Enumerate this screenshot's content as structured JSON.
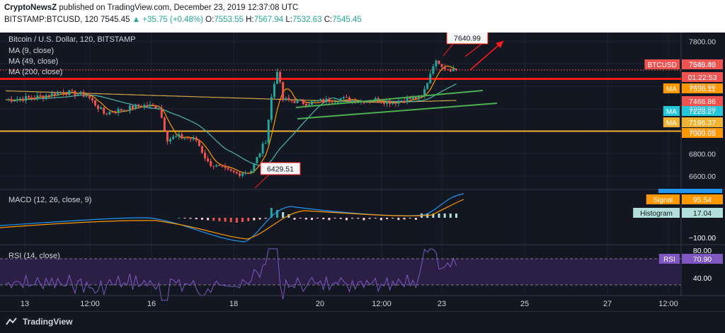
{
  "header": {
    "line1_author": "CryptoNewsZ",
    "line1_rest": " published on TradingView.com, December 23, 2019 12:37:08 UTC",
    "symbol": "BITSTAMP:BTCUSD, 120",
    "price": "7545.45",
    "change": "+35.75 (+0.48%)",
    "o_label": "O:",
    "o": "7553.55",
    "h_label": "H:",
    "h": "7567.94",
    "l_label": "L:",
    "l": "7532.63",
    "c_label": "C:",
    "c": "7545.45"
  },
  "legend": {
    "title": "Bitcoin / U.S. Dollar, 120, BITSTAMP",
    "ma9": "MA (9, close)",
    "ma49": "MA (49, close)",
    "ma200": "MA (200, close)",
    "macd": "MACD (12, 26, close, 9)",
    "rsi": "RSI (14, close)"
  },
  "annotations": {
    "high_callout": "7640.99",
    "low_callout": "6429.51"
  },
  "price_badges": [
    {
      "text": "BTCUSD",
      "value": "7545.45",
      "color": "#ef5350"
    },
    {
      "text": "",
      "value": "01:22:53",
      "color": "#ef5350"
    },
    {
      "text": "MA",
      "value": "7536.11",
      "color": "#ff9800"
    },
    {
      "text": "",
      "value": "7466.86",
      "color": "#ef5350"
    },
    {
      "text": "MA",
      "value": "7228.27",
      "color": "#26c6da"
    },
    {
      "text": "MA",
      "value": "7196.37",
      "color": "#f0b232"
    },
    {
      "text": "",
      "value": "7000.05",
      "color": "#ff9800"
    }
  ],
  "macd_badges": [
    {
      "text": "Signal",
      "value": "95.54",
      "color": "#ff9800"
    },
    {
      "text": "Histogram",
      "value": "17.04",
      "color": "#b2dfdb"
    },
    {
      "text": "",
      "value": "−100.00",
      "color": ""
    }
  ],
  "rsi_badges": [
    {
      "text": "RSI",
      "value": "70.90",
      "color": "#7e57c2"
    },
    {
      "text": "",
      "value": "80.00",
      "color": ""
    },
    {
      "text": "",
      "value": "40.00",
      "color": ""
    }
  ],
  "footer": {
    "brand": "TradingView"
  },
  "colors": {
    "up": "#26a69a",
    "down": "#ef5350",
    "ma9": "#ff9800",
    "ma49": "#4db6ac",
    "ma200": "#d4a64a",
    "resist": "#ff1a1a",
    "support": "#f0b232",
    "channel": "#4caf50",
    "rsi": "#7e57c2"
  },
  "chart_data": {
    "type": "candlestick",
    "title": "Bitcoin / U.S. Dollar, 120, BITSTAMP",
    "y_ticks": [
      6600,
      6800,
      7000,
      7200,
      7400,
      7600,
      7800
    ],
    "x_ticks": [
      "13",
      "12:00",
      "16",
      "18",
      "20",
      "12:00",
      "23",
      "25",
      "27",
      "12:00"
    ],
    "ylim": [
      6480,
      7880
    ],
    "close_path": [
      [
        0,
        7280
      ],
      [
        10,
        7300
      ],
      [
        20,
        7350
      ],
      [
        28,
        7320
      ],
      [
        34,
        7160
      ],
      [
        40,
        7190
      ],
      [
        47,
        7230
      ],
      [
        53,
        7220
      ],
      [
        56,
        6930
      ],
      [
        60,
        6950
      ],
      [
        66,
        6920
      ],
      [
        70,
        6720
      ],
      [
        75,
        6660
      ],
      [
        80,
        6620
      ],
      [
        85,
        6650
      ],
      [
        90,
        6920
      ],
      [
        92,
        7300
      ],
      [
        94,
        7550
      ],
      [
        96,
        7280
      ],
      [
        100,
        7270
      ],
      [
        104,
        7250
      ],
      [
        110,
        7270
      ],
      [
        116,
        7290
      ],
      [
        122,
        7270
      ],
      [
        128,
        7280
      ],
      [
        134,
        7260
      ],
      [
        140,
        7290
      ],
      [
        144,
        7300
      ],
      [
        146,
        7440
      ],
      [
        148,
        7600
      ],
      [
        150,
        7620
      ],
      [
        152,
        7570
      ],
      [
        156,
        7546
      ]
    ],
    "resistance": 7466.86,
    "support": 7000.05,
    "last": 7545.45,
    "macd_levels": [
      "−100.00"
    ],
    "rsi_levels": [
      "80.00",
      "40.00"
    ],
    "rsi_value": 70.9
  }
}
